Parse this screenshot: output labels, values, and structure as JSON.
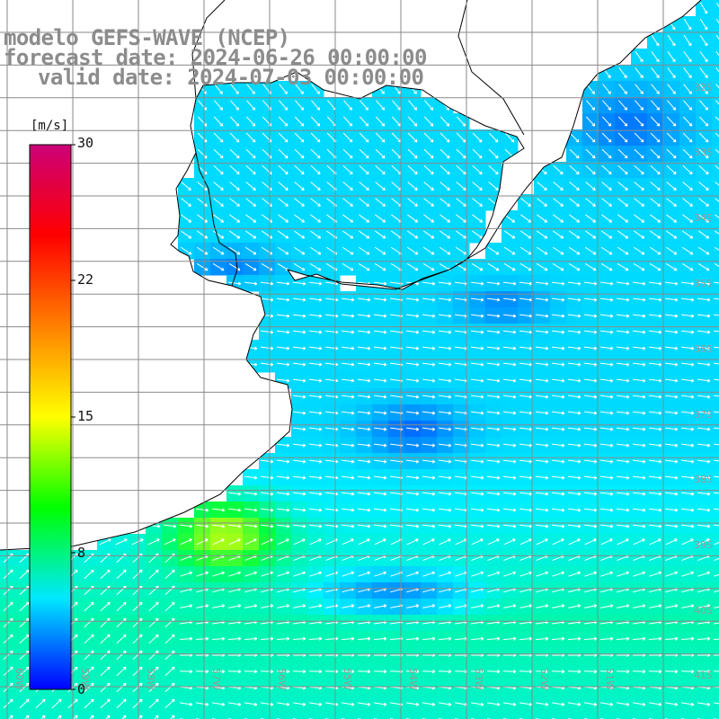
{
  "titles": {
    "model": "modelo GEFS-WAVE (NCEP)",
    "forecast": "forecast date: 2024-06-26 00:00:00",
    "valid": "valid date: 2024-07-03 00:00:00"
  },
  "colorbar": {
    "unit": "[m/s]",
    "ticks": [
      {
        "label": "30",
        "value": 30
      },
      {
        "label": "22",
        "value": 22
      },
      {
        "label": "15",
        "value": 15
      },
      {
        "label": "8",
        "value": 8
      },
      {
        "label": "0",
        "value": 0
      }
    ],
    "range": [
      0,
      30
    ],
    "colors": [
      "#0000ff",
      "#00e8ff",
      "#00ff00",
      "#ffff00",
      "#ff8000",
      "#ff0000",
      "#cc0077"
    ]
  },
  "grid": {
    "lat_labels": [
      "32S",
      "33S",
      "34S",
      "35S",
      "36S",
      "37S",
      "38S",
      "39S",
      "40S",
      "41S"
    ],
    "lon_labels": [
      "60W",
      "59W",
      "58W",
      "57W",
      "56W",
      "55W",
      "54W",
      "53W",
      "52W",
      "51W"
    ],
    "line_color": "#8a8a8a"
  },
  "map": {
    "land_color": "#ffffff",
    "coast_color": "#000000",
    "arrow_color": "#ffffff"
  }
}
